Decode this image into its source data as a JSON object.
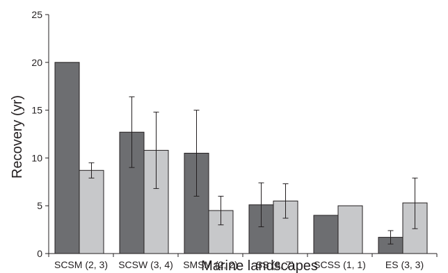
{
  "chart_data": {
    "type": "bar",
    "title": "",
    "xlabel": "Marine landscapes",
    "ylabel": "Recovery (yr)",
    "categories": [
      "SCSM (2, 3)",
      "SCSW (3, 4)",
      "SMSM (2, 2)",
      "SS (8, 7)",
      "SCSS (1, 1)",
      "ES (3, 3)"
    ],
    "ylim": [
      0,
      25
    ],
    "yticks": [
      0,
      5,
      10,
      15,
      20,
      25
    ],
    "grid": false,
    "series": [
      {
        "color": "#6d6e71",
        "values": [
          20.0,
          12.7,
          10.5,
          5.1,
          4.0,
          1.7
        ],
        "err_low": [
          20.0,
          9.0,
          6.0,
          2.8,
          4.0,
          1.0
        ],
        "err_high": [
          20.0,
          16.4,
          15.0,
          7.4,
          4.0,
          2.4
        ]
      },
      {
        "color": "#c7c8ca",
        "values": [
          8.7,
          10.8,
          4.5,
          5.5,
          5.0,
          5.3
        ],
        "err_low": [
          7.9,
          6.8,
          3.0,
          3.7,
          5.0,
          2.6
        ],
        "err_high": [
          9.5,
          14.8,
          6.0,
          7.3,
          5.0,
          7.9
        ]
      }
    ]
  }
}
